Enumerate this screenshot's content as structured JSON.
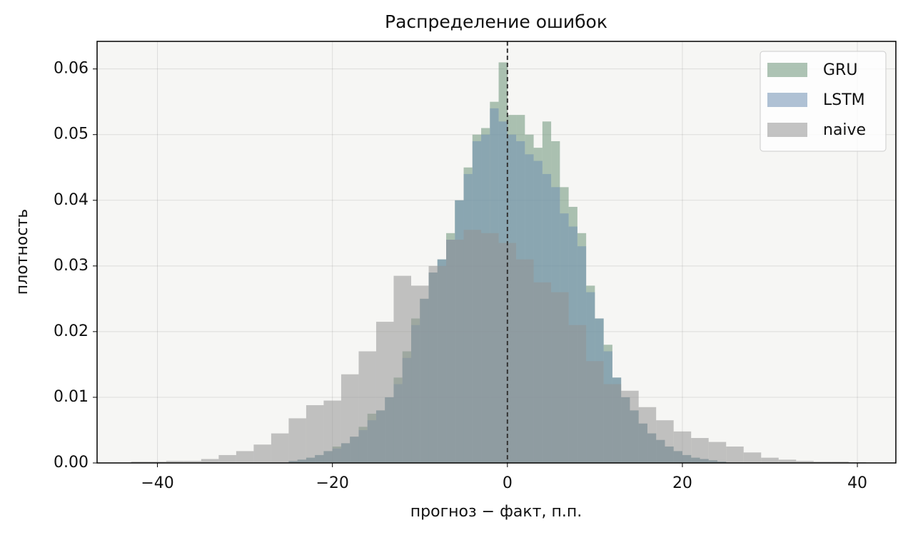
{
  "chart_data": {
    "type": "histogram",
    "title": "Распределение ошибок",
    "x_label": "прогноз − факт, п.п.",
    "y_label": "плотность",
    "xlim": [
      -46.9,
      44.4
    ],
    "ylim": [
      0,
      0.0642
    ],
    "xticks": [
      {
        "value": -40,
        "label": "−40"
      },
      {
        "value": -20,
        "label": "−20"
      },
      0,
      20,
      40
    ],
    "yticks": [
      {
        "value": 0,
        "label": "0.00"
      },
      {
        "value": 0.01,
        "label": "0.01"
      },
      {
        "value": 0.02,
        "label": "0.02"
      },
      {
        "value": 0.03,
        "label": "0.03"
      },
      {
        "value": 0.04,
        "label": "0.04"
      },
      {
        "value": 0.05,
        "label": "0.05"
      },
      {
        "value": 0.06,
        "label": "0.06"
      }
    ],
    "grid": true,
    "legend": "upper right",
    "vline": 0,
    "alpha": 0.55,
    "series": [
      {
        "name": "GRU",
        "color": "#6b9479",
        "bins": [
          -25,
          -24,
          -23,
          -22,
          -21,
          -20,
          -19,
          -18,
          -17,
          -16,
          -15,
          -14,
          -13,
          -12,
          -11,
          -10,
          -9,
          -8,
          -7,
          -6,
          -5,
          -4,
          -3,
          -2,
          -1,
          0,
          1,
          2,
          3,
          4,
          5,
          6,
          7,
          8,
          9,
          10,
          11,
          12,
          13,
          14,
          15,
          16,
          17,
          18,
          19,
          20,
          21,
          22,
          23,
          24,
          25
        ],
        "values": [
          0.0003,
          0.0005,
          0.0008,
          0.0012,
          0.0018,
          0.0025,
          0.003,
          0.004,
          0.0055,
          0.0075,
          0.008,
          0.01,
          0.013,
          0.017,
          0.022,
          0.025,
          0.029,
          0.031,
          0.035,
          0.04,
          0.045,
          0.05,
          0.051,
          0.055,
          0.061,
          0.053,
          0.053,
          0.05,
          0.048,
          0.052,
          0.049,
          0.042,
          0.039,
          0.035,
          0.027,
          0.022,
          0.018,
          0.013,
          0.01,
          0.008,
          0.006,
          0.0045,
          0.0035,
          0.0025,
          0.0018,
          0.0012,
          0.0008,
          0.0006,
          0.0004,
          0.0002
        ]
      },
      {
        "name": "LSTM",
        "color": "#6f8fb3",
        "bins": [
          -25,
          -24,
          -23,
          -22,
          -21,
          -20,
          -19,
          -18,
          -17,
          -16,
          -15,
          -14,
          -13,
          -12,
          -11,
          -10,
          -9,
          -8,
          -7,
          -6,
          -5,
          -4,
          -3,
          -2,
          -1,
          0,
          1,
          2,
          3,
          4,
          5,
          6,
          7,
          8,
          9,
          10,
          11,
          12,
          13,
          14,
          15,
          16,
          17,
          18,
          19,
          20,
          21,
          22,
          23,
          24,
          25
        ],
        "values": [
          0.0003,
          0.0005,
          0.0008,
          0.0012,
          0.0018,
          0.0022,
          0.003,
          0.004,
          0.005,
          0.0065,
          0.008,
          0.01,
          0.012,
          0.016,
          0.021,
          0.025,
          0.029,
          0.031,
          0.034,
          0.04,
          0.044,
          0.049,
          0.05,
          0.054,
          0.052,
          0.05,
          0.049,
          0.047,
          0.046,
          0.044,
          0.042,
          0.038,
          0.036,
          0.033,
          0.026,
          0.022,
          0.017,
          0.013,
          0.01,
          0.008,
          0.006,
          0.0045,
          0.0035,
          0.0025,
          0.0018,
          0.0012,
          0.0008,
          0.0006,
          0.0004,
          0.0002
        ]
      },
      {
        "name": "naive",
        "color": "#949494",
        "bins": [
          -43,
          -41,
          -39,
          -37,
          -35,
          -33,
          -31,
          -29,
          -27,
          -25,
          -23,
          -21,
          -19,
          -17,
          -15,
          -13,
          -11,
          -9,
          -7,
          -5,
          -3,
          -1,
          1,
          3,
          5,
          7,
          9,
          11,
          13,
          15,
          17,
          19,
          21,
          23,
          25,
          27,
          29,
          31,
          33,
          35,
          37,
          39,
          41
        ],
        "values": [
          0.0002,
          0.0002,
          0.0003,
          0.0003,
          0.0006,
          0.0012,
          0.0018,
          0.0028,
          0.0045,
          0.0068,
          0.0088,
          0.0095,
          0.0135,
          0.017,
          0.0215,
          0.0285,
          0.027,
          0.03,
          0.034,
          0.0355,
          0.035,
          0.0335,
          0.031,
          0.0275,
          0.026,
          0.021,
          0.0155,
          0.012,
          0.011,
          0.0085,
          0.0065,
          0.0048,
          0.0038,
          0.0032,
          0.0025,
          0.0016,
          0.0008,
          0.0005,
          0.0003,
          0.0002,
          0.0002,
          0.0001
        ]
      }
    ]
  }
}
